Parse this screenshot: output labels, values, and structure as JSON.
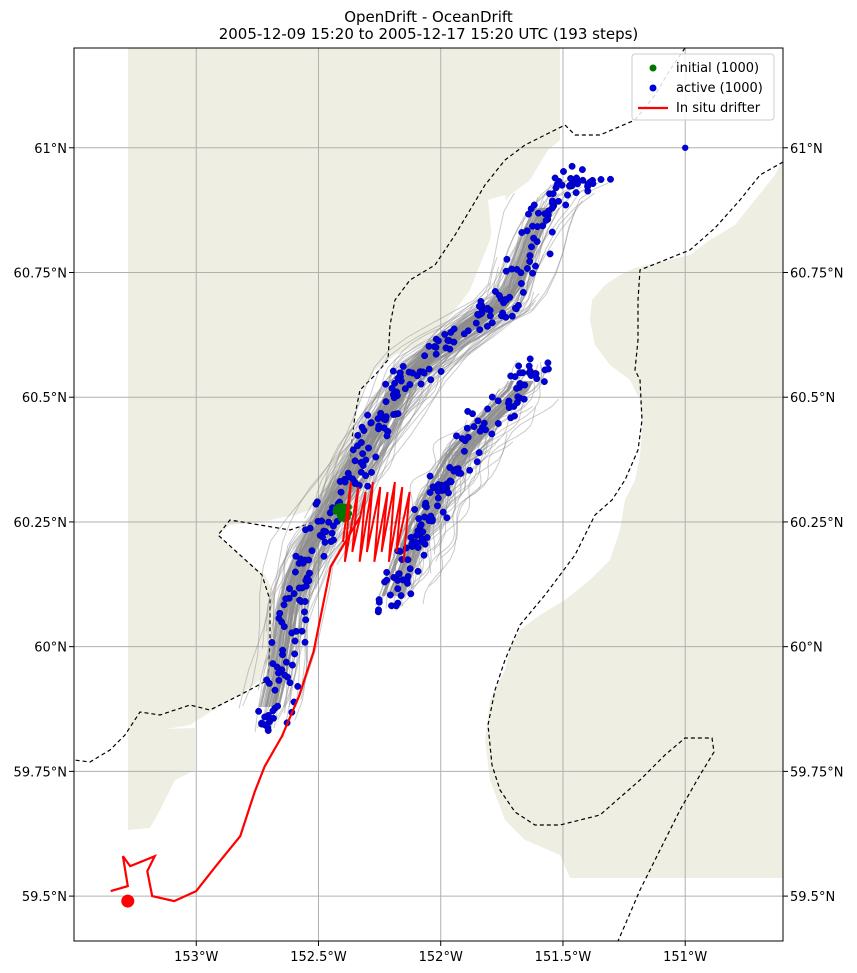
{
  "title": {
    "line1": "OpenDrift - OceanDrift",
    "line2": "2005-12-09 15:20 to 2005-12-17 15:20 UTC (193 steps)"
  },
  "colors": {
    "land": "#eeeee3",
    "trajectory": "#8c8c8c",
    "initial": "#007500",
    "active": "#0000dd",
    "drifter": "#ff0000",
    "grid": "#b0b0b0"
  },
  "legend": {
    "initial": "initial (1000)",
    "active": "active (1000)",
    "drifter": "In situ drifter",
    "placement": "upper right"
  },
  "axes": {
    "x_ticks": [
      {
        "value": -153.0,
        "label": "153°W"
      },
      {
        "value": -152.5,
        "label": "152.5°W"
      },
      {
        "value": -152.0,
        "label": "152°W"
      },
      {
        "value": -151.5,
        "label": "151.5°W"
      },
      {
        "value": -151.0,
        "label": "151°W"
      }
    ],
    "y_ticks": [
      {
        "value": 59.5,
        "label": "59.5°N"
      },
      {
        "value": 59.75,
        "label": "59.75°N"
      },
      {
        "value": 60.0,
        "label": "60°N"
      },
      {
        "value": 60.25,
        "label": "60.25°N"
      },
      {
        "value": 60.5,
        "label": "60.5°N"
      },
      {
        "value": 60.75,
        "label": "60.75°N"
      },
      {
        "value": 61.0,
        "label": "61°N"
      }
    ],
    "lon_range": [
      -153.5,
      -150.6
    ],
    "lat_range": [
      59.41,
      61.2
    ],
    "grid": true
  },
  "map_data": {
    "drifter_track": [
      [
        -152.33,
        60.26
      ],
      [
        -152.45,
        60.16
      ],
      [
        -152.52,
        59.99
      ],
      [
        -152.58,
        59.9
      ],
      [
        -152.65,
        59.82
      ],
      [
        -152.72,
        59.76
      ],
      [
        -152.76,
        59.71
      ],
      [
        -152.82,
        59.62
      ],
      [
        -152.92,
        59.56
      ],
      [
        -153.0,
        59.51
      ],
      [
        -153.09,
        59.49
      ],
      [
        -153.18,
        59.5
      ],
      [
        -153.2,
        59.55
      ],
      [
        -153.17,
        59.58
      ],
      [
        -153.27,
        59.56
      ],
      [
        -153.3,
        59.58
      ],
      [
        -153.28,
        59.52
      ],
      [
        -153.35,
        59.51
      ]
    ],
    "drifter_end": [
      -153.28,
      59.49
    ],
    "initial_center": [
      -152.4,
      60.27
    ],
    "outlier_particle": [
      -151.0,
      61.0
    ]
  }
}
